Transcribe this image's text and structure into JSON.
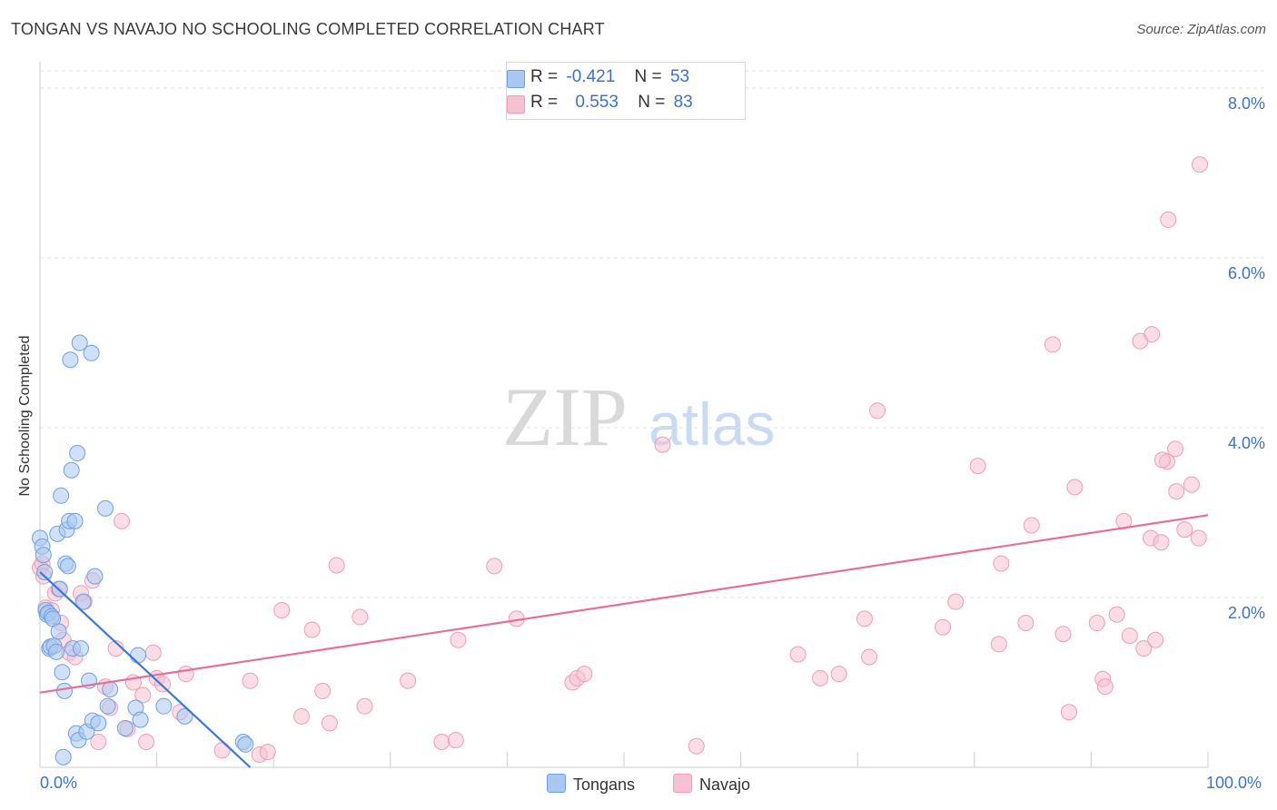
{
  "header": {
    "title": "TONGAN VS NAVAJO NO SCHOOLING COMPLETED CORRELATION CHART",
    "source": "Source: ZipAtlas.com"
  },
  "watermark": {
    "zip": "ZIP",
    "atlas": "atlas"
  },
  "legend_top": {
    "tongans": {
      "r_label": "R =",
      "r_value": "-0.421",
      "n_label": "N =",
      "n_value": "53"
    },
    "navajo": {
      "r_label": "R =",
      "r_value": "0.553",
      "n_label": "N =",
      "n_value": "83"
    }
  },
  "legend_bottom": {
    "tongans": "Tongans",
    "navajo": "Navajo"
  },
  "colors": {
    "tongans_fill": "#a9c8f0",
    "tongans_stroke": "#6f9fe0",
    "tongans_line": "#3a78d6",
    "navajo_fill": "#f7c1d2",
    "navajo_stroke": "#ee9db7",
    "navajo_line": "#e4709a",
    "axis_label": "#3d72c9",
    "grid": "#e2e2e2"
  },
  "chart_data": {
    "type": "scatter",
    "title": "TONGAN VS NAVAJO NO SCHOOLING COMPLETED CORRELATION CHART",
    "xlabel": "",
    "ylabel": "No Schooling Completed",
    "xlim": [
      0,
      100
    ],
    "ylim": [
      0,
      8.0
    ],
    "x_tick_labels": [
      "0.0%",
      "100.0%"
    ],
    "y_ticks": [
      2.0,
      4.0,
      6.0,
      8.0
    ],
    "y_tick_labels": [
      "2.0%",
      "4.0%",
      "6.0%",
      "8.0%"
    ],
    "grid": true,
    "legend_position": "top-center",
    "series": [
      {
        "name": "Tongans",
        "r": -0.421,
        "n": 53,
        "trend": {
          "x0": 0,
          "y0": 2.3,
          "x1": 18,
          "y1": 0.0
        },
        "points": [
          [
            0.0,
            2.7
          ],
          [
            0.2,
            2.6
          ],
          [
            0.3,
            2.5
          ],
          [
            0.4,
            2.3
          ],
          [
            0.5,
            1.85
          ],
          [
            0.6,
            1.8
          ],
          [
            0.7,
            1.82
          ],
          [
            0.8,
            1.4
          ],
          [
            0.9,
            1.42
          ],
          [
            1.0,
            1.78
          ],
          [
            1.1,
            1.75
          ],
          [
            1.2,
            1.43
          ],
          [
            1.4,
            1.36
          ],
          [
            1.5,
            2.75
          ],
          [
            1.6,
            1.6
          ],
          [
            1.7,
            2.1
          ],
          [
            1.8,
            3.2
          ],
          [
            1.9,
            1.12
          ],
          [
            2.0,
            0.12
          ],
          [
            2.1,
            0.9
          ],
          [
            2.2,
            2.4
          ],
          [
            2.3,
            2.8
          ],
          [
            2.4,
            2.37
          ],
          [
            2.5,
            2.9
          ],
          [
            2.6,
            4.8
          ],
          [
            2.7,
            3.5
          ],
          [
            2.8,
            1.4
          ],
          [
            3.0,
            2.9
          ],
          [
            3.1,
            0.4
          ],
          [
            3.2,
            3.7
          ],
          [
            3.3,
            0.32
          ],
          [
            3.4,
            5.0
          ],
          [
            3.5,
            1.4
          ],
          [
            3.7,
            1.95
          ],
          [
            4.0,
            0.42
          ],
          [
            4.2,
            1.02
          ],
          [
            4.4,
            4.88
          ],
          [
            4.5,
            0.55
          ],
          [
            4.7,
            2.25
          ],
          [
            5.0,
            0.52
          ],
          [
            5.6,
            3.05
          ],
          [
            5.8,
            0.72
          ],
          [
            6.0,
            0.92
          ],
          [
            7.3,
            0.46
          ],
          [
            8.2,
            0.7
          ],
          [
            8.4,
            1.32
          ],
          [
            8.6,
            0.56
          ],
          [
            10.6,
            0.72
          ],
          [
            12.4,
            0.6
          ],
          [
            17.4,
            0.3
          ],
          [
            17.6,
            0.27
          ]
        ]
      },
      {
        "name": "Navajo",
        "r": 0.553,
        "n": 83,
        "trend": {
          "x0": 0,
          "y0": 0.88,
          "x1": 100,
          "y1": 2.97
        },
        "points": [
          [
            0.0,
            2.35
          ],
          [
            0.2,
            2.4
          ],
          [
            0.3,
            2.25
          ],
          [
            0.5,
            1.88
          ],
          [
            1.0,
            1.85
          ],
          [
            1.3,
            2.05
          ],
          [
            1.6,
            2.1
          ],
          [
            1.8,
            1.7
          ],
          [
            2.0,
            1.5
          ],
          [
            2.5,
            1.35
          ],
          [
            3.0,
            1.3
          ],
          [
            3.5,
            2.05
          ],
          [
            3.8,
            1.95
          ],
          [
            4.5,
            2.2
          ],
          [
            5.0,
            0.3
          ],
          [
            5.6,
            0.95
          ],
          [
            6.0,
            0.7
          ],
          [
            6.5,
            1.4
          ],
          [
            7.0,
            2.9
          ],
          [
            7.5,
            0.45
          ],
          [
            8.0,
            1.0
          ],
          [
            8.8,
            0.85
          ],
          [
            9.1,
            0.3
          ],
          [
            9.7,
            1.35
          ],
          [
            10.0,
            1.05
          ],
          [
            10.5,
            0.98
          ],
          [
            12.0,
            0.65
          ],
          [
            12.5,
            1.1
          ],
          [
            15.6,
            0.2
          ],
          [
            18.0,
            1.02
          ],
          [
            18.8,
            0.15
          ],
          [
            19.5,
            0.18
          ],
          [
            20.7,
            1.85
          ],
          [
            22.4,
            0.6
          ],
          [
            23.3,
            1.62
          ],
          [
            24.2,
            0.9
          ],
          [
            24.8,
            0.52
          ],
          [
            25.4,
            2.38
          ],
          [
            27.4,
            1.77
          ],
          [
            27.8,
            0.72
          ],
          [
            31.5,
            1.02
          ],
          [
            34.4,
            0.3
          ],
          [
            35.6,
            0.32
          ],
          [
            35.8,
            1.5
          ],
          [
            38.9,
            2.37
          ],
          [
            40.8,
            1.75
          ],
          [
            45.6,
            1.0
          ],
          [
            46.0,
            1.05
          ],
          [
            46.6,
            1.1
          ],
          [
            53.3,
            3.8
          ],
          [
            56.2,
            0.25
          ],
          [
            64.9,
            1.33
          ],
          [
            66.8,
            1.05
          ],
          [
            68.4,
            1.1
          ],
          [
            70.6,
            1.75
          ],
          [
            71.0,
            1.3
          ],
          [
            71.7,
            4.2
          ],
          [
            77.3,
            1.65
          ],
          [
            78.4,
            1.95
          ],
          [
            80.3,
            3.55
          ],
          [
            82.1,
            1.45
          ],
          [
            82.3,
            2.4
          ],
          [
            84.4,
            1.7
          ],
          [
            84.9,
            2.85
          ],
          [
            86.7,
            4.98
          ],
          [
            87.6,
            1.57
          ],
          [
            88.1,
            0.65
          ],
          [
            88.6,
            3.3
          ],
          [
            90.5,
            1.7
          ],
          [
            91.0,
            1.04
          ],
          [
            91.2,
            0.95
          ],
          [
            92.2,
            1.8
          ],
          [
            92.8,
            2.9
          ],
          [
            93.3,
            1.55
          ],
          [
            94.5,
            1.4
          ],
          [
            95.1,
            2.7
          ],
          [
            95.5,
            1.5
          ],
          [
            96.0,
            2.65
          ],
          [
            96.6,
            6.45
          ],
          [
            97.3,
            3.25
          ],
          [
            98.0,
            2.8
          ],
          [
            98.6,
            3.33
          ],
          [
            99.2,
            2.7
          ]
        ]
      }
    ],
    "extra_navajo_points": [
      [
        94.2,
        5.02
      ],
      [
        95.2,
        5.1
      ],
      [
        96.5,
        3.6
      ],
      [
        97.2,
        3.75
      ],
      [
        96.1,
        3.62
      ],
      [
        99.3,
        7.1
      ]
    ]
  }
}
